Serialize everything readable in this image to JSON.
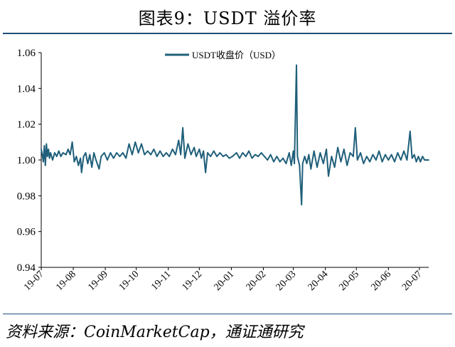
{
  "title": "图表9：USDT 溢价率",
  "source": "资料来源：CoinMarketCap，通证通研究",
  "chart_data": {
    "type": "line",
    "legend": {
      "position": "top-center"
    },
    "series": [
      {
        "name": "USDT收盘价（USD）",
        "color": "#1f5f7a",
        "points": [
          [
            "2019-07-01",
            1.006
          ],
          [
            "2019-07-02",
            1.003
          ],
          [
            "2019-07-03",
            0.999
          ],
          [
            "2019-07-04",
            1.008
          ],
          [
            "2019-07-05",
            0.997
          ],
          [
            "2019-07-06",
            1.009
          ],
          [
            "2019-07-07",
            1.002
          ],
          [
            "2019-07-08",
            1.006
          ],
          [
            "2019-07-09",
            1.001
          ],
          [
            "2019-07-10",
            1.004
          ],
          [
            "2019-07-12",
            1.0
          ],
          [
            "2019-07-14",
            1.004
          ],
          [
            "2019-07-16",
            1.002
          ],
          [
            "2019-07-18",
            1.005
          ],
          [
            "2019-07-20",
            1.002
          ],
          [
            "2019-07-22",
            1.004
          ],
          [
            "2019-07-25",
            1.003
          ],
          [
            "2019-07-27",
            1.006
          ],
          [
            "2019-07-29",
            1.003
          ],
          [
            "2019-07-31",
            1.01
          ],
          [
            "2019-08-02",
            0.999
          ],
          [
            "2019-08-04",
            1.002
          ],
          [
            "2019-08-06",
            0.997
          ],
          [
            "2019-08-08",
            1.001
          ],
          [
            "2019-08-09",
            0.993
          ],
          [
            "2019-08-11",
            1.002
          ],
          [
            "2019-08-13",
            1.004
          ],
          [
            "2019-08-15",
            0.998
          ],
          [
            "2019-08-17",
            1.003
          ],
          [
            "2019-08-19",
            0.996
          ],
          [
            "2019-08-21",
            1.004
          ],
          [
            "2019-08-23",
            1.0
          ],
          [
            "2019-08-26",
            0.995
          ],
          [
            "2019-08-28",
            1.002
          ],
          [
            "2019-08-31",
            1.004
          ],
          [
            "2019-09-03",
            1.0
          ],
          [
            "2019-09-06",
            1.004
          ],
          [
            "2019-09-09",
            1.001
          ],
          [
            "2019-09-12",
            1.004
          ],
          [
            "2019-09-15",
            1.002
          ],
          [
            "2019-09-18",
            1.004
          ],
          [
            "2019-09-21",
            1.001
          ],
          [
            "2019-09-24",
            1.009
          ],
          [
            "2019-09-27",
            1.003
          ],
          [
            "2019-09-30",
            1.01
          ],
          [
            "2019-10-03",
            1.004
          ],
          [
            "2019-10-06",
            1.009
          ],
          [
            "2019-10-09",
            1.003
          ],
          [
            "2019-10-12",
            1.005
          ],
          [
            "2019-10-15",
            1.003
          ],
          [
            "2019-10-18",
            1.006
          ],
          [
            "2019-10-21",
            1.002
          ],
          [
            "2019-10-24",
            1.005
          ],
          [
            "2019-10-27",
            1.002
          ],
          [
            "2019-10-30",
            1.004
          ],
          [
            "2019-11-02",
            1.002
          ],
          [
            "2019-11-05",
            1.006
          ],
          [
            "2019-11-08",
            1.003
          ],
          [
            "2019-11-11",
            1.011
          ],
          [
            "2019-11-13",
            1.003
          ],
          [
            "2019-11-15",
            1.018
          ],
          [
            "2019-11-17",
            1.001
          ],
          [
            "2019-11-20",
            1.009
          ],
          [
            "2019-11-23",
            1.003
          ],
          [
            "2019-11-26",
            1.007
          ],
          [
            "2019-11-28",
            1.002
          ],
          [
            "2019-12-01",
            1.006
          ],
          [
            "2019-12-03",
            1.001
          ],
          [
            "2019-12-05",
            1.005
          ],
          [
            "2019-12-07",
            0.993
          ],
          [
            "2019-12-09",
            1.004
          ],
          [
            "2019-12-12",
            1.002
          ],
          [
            "2019-12-15",
            1.005
          ],
          [
            "2019-12-18",
            1.002
          ],
          [
            "2019-12-21",
            1.004
          ],
          [
            "2019-12-24",
            1.002
          ],
          [
            "2019-12-27",
            1.003
          ],
          [
            "2019-12-30",
            1.001
          ],
          [
            "2020-01-02",
            1.002
          ],
          [
            "2020-01-06",
            1.004
          ],
          [
            "2020-01-09",
            1.001
          ],
          [
            "2020-01-12",
            1.004
          ],
          [
            "2020-01-15",
            1.002
          ],
          [
            "2020-01-18",
            1.005
          ],
          [
            "2020-01-21",
            1.001
          ],
          [
            "2020-01-24",
            1.003
          ],
          [
            "2020-01-27",
            1.002
          ],
          [
            "2020-01-30",
            1.004
          ],
          [
            "2020-02-02",
            1.002
          ],
          [
            "2020-02-05",
            1.0
          ],
          [
            "2020-02-08",
            1.003
          ],
          [
            "2020-02-11",
            0.999
          ],
          [
            "2020-02-14",
            1.002
          ],
          [
            "2020-02-17",
            0.999
          ],
          [
            "2020-02-20",
            1.001
          ],
          [
            "2020-02-23",
            0.998
          ],
          [
            "2020-02-26",
            1.004
          ],
          [
            "2020-02-28",
            0.997
          ],
          [
            "2020-03-01",
            1.005
          ],
          [
            "2020-03-02",
            0.998
          ],
          [
            "2020-03-04",
            1.053
          ],
          [
            "2020-03-05",
            1.002
          ],
          [
            "2020-03-07",
            0.997
          ],
          [
            "2020-03-09",
            0.975
          ],
          [
            "2020-03-10",
            0.998
          ],
          [
            "2020-03-12",
            1.002
          ],
          [
            "2020-03-14",
            0.998
          ],
          [
            "2020-03-16",
            1.003
          ],
          [
            "2020-03-18",
            0.995
          ],
          [
            "2020-03-21",
            1.005
          ],
          [
            "2020-03-24",
            0.996
          ],
          [
            "2020-03-27",
            1.004
          ],
          [
            "2020-03-30",
            0.998
          ],
          [
            "2020-04-02",
            1.006
          ],
          [
            "2020-04-04",
            0.991
          ],
          [
            "2020-04-07",
            1.002
          ],
          [
            "2020-04-10",
            0.996
          ],
          [
            "2020-04-13",
            1.007
          ],
          [
            "2020-04-16",
            0.999
          ],
          [
            "2020-04-19",
            1.006
          ],
          [
            "2020-04-22",
            0.997
          ],
          [
            "2020-04-25",
            1.004
          ],
          [
            "2020-04-28",
            1.002
          ],
          [
            "2020-04-30",
            1.018
          ],
          [
            "2020-05-02",
            1.0
          ],
          [
            "2020-05-05",
            1.004
          ],
          [
            "2020-05-08",
            0.998
          ],
          [
            "2020-05-11",
            1.002
          ],
          [
            "2020-05-14",
            0.999
          ],
          [
            "2020-05-17",
            1.003
          ],
          [
            "2020-05-20",
            1.0
          ],
          [
            "2020-05-23",
            1.005
          ],
          [
            "2020-05-26",
            0.999
          ],
          [
            "2020-05-29",
            1.003
          ],
          [
            "2020-06-01",
            1.0
          ],
          [
            "2020-06-04",
            1.003
          ],
          [
            "2020-06-07",
            0.999
          ],
          [
            "2020-06-10",
            1.004
          ],
          [
            "2020-06-13",
            1.0
          ],
          [
            "2020-06-16",
            1.005
          ],
          [
            "2020-06-19",
            1.0
          ],
          [
            "2020-06-22",
            1.016
          ],
          [
            "2020-06-24",
            1.001
          ],
          [
            "2020-06-26",
            1.003
          ],
          [
            "2020-06-28",
            0.999
          ],
          [
            "2020-06-30",
            1.002
          ],
          [
            "2020-07-02",
            0.999
          ],
          [
            "2020-07-04",
            1.002
          ],
          [
            "2020-07-06",
            1.0
          ],
          [
            "2020-07-08",
            1.0
          ],
          [
            "2020-07-10",
            1.0
          ]
        ]
      }
    ],
    "y_ticks": [
      "0.94",
      "0.96",
      "0.98",
      "1.00",
      "1.02",
      "1.04",
      "1.06"
    ],
    "x_ticks": [
      "19-07",
      "19-08",
      "19-09",
      "19-10",
      "19-11",
      "19-12",
      "20-01",
      "20-02",
      "20-03",
      "20-04",
      "20-05",
      "20-06",
      "20-07"
    ],
    "x_tick_dates": [
      "2019-07-01",
      "2019-08-01",
      "2019-09-01",
      "2019-10-01",
      "2019-11-01",
      "2019-12-01",
      "2020-01-01",
      "2020-02-01",
      "2020-03-01",
      "2020-04-01",
      "2020-05-01",
      "2020-06-01",
      "2020-07-01"
    ],
    "xlim": [
      "2019-07-01",
      "2020-07-10"
    ],
    "ylim": [
      0.94,
      1.06
    ],
    "grid": false
  }
}
